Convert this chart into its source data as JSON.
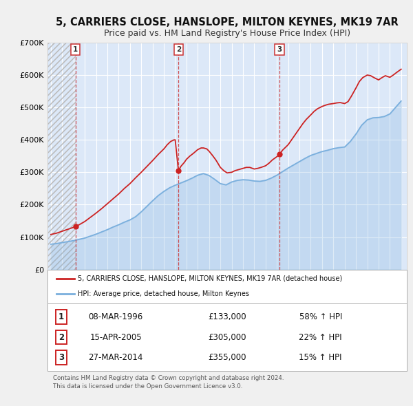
{
  "title": "5, CARRIERS CLOSE, HANSLOPE, MILTON KEYNES, MK19 7AR",
  "subtitle": "Price paid vs. HM Land Registry's House Price Index (HPI)",
  "ylim": [
    0,
    700000
  ],
  "yticks": [
    0,
    100000,
    200000,
    300000,
    400000,
    500000,
    600000,
    700000
  ],
  "xlim_start": 1993.7,
  "xlim_end": 2025.5,
  "background_color": "#f0f0f0",
  "plot_bg_color": "#dce8f8",
  "grid_color": "#ffffff",
  "hpi_color": "#7aafdd",
  "price_color": "#cc2222",
  "sale_marker_color": "#cc2222",
  "sale1_x": 1996.19,
  "sale1_y": 133000,
  "sale1_label": "1",
  "sale2_x": 2005.29,
  "sale2_y": 305000,
  "sale2_label": "2",
  "sale3_x": 2014.23,
  "sale3_y": 355000,
  "sale3_label": "3",
  "vline_color": "#cc3333",
  "legend_property_label": "5, CARRIERS CLOSE, HANSLOPE, MILTON KEYNES, MK19 7AR (detached house)",
  "legend_hpi_label": "HPI: Average price, detached house, Milton Keynes",
  "table_rows": [
    {
      "num": "1",
      "date": "08-MAR-1996",
      "price": "£133,000",
      "hpi": "58% ↑ HPI"
    },
    {
      "num": "2",
      "date": "15-APR-2005",
      "price": "£305,000",
      "hpi": "22% ↑ HPI"
    },
    {
      "num": "3",
      "date": "27-MAR-2014",
      "price": "£355,000",
      "hpi": "15% ↑ HPI"
    }
  ],
  "footer": "Contains HM Land Registry data © Crown copyright and database right 2024.\nThis data is licensed under the Open Government Licence v3.0.",
  "hatch_region_end": 1996.19,
  "title_fontsize": 10.5,
  "subtitle_fontsize": 9.0
}
